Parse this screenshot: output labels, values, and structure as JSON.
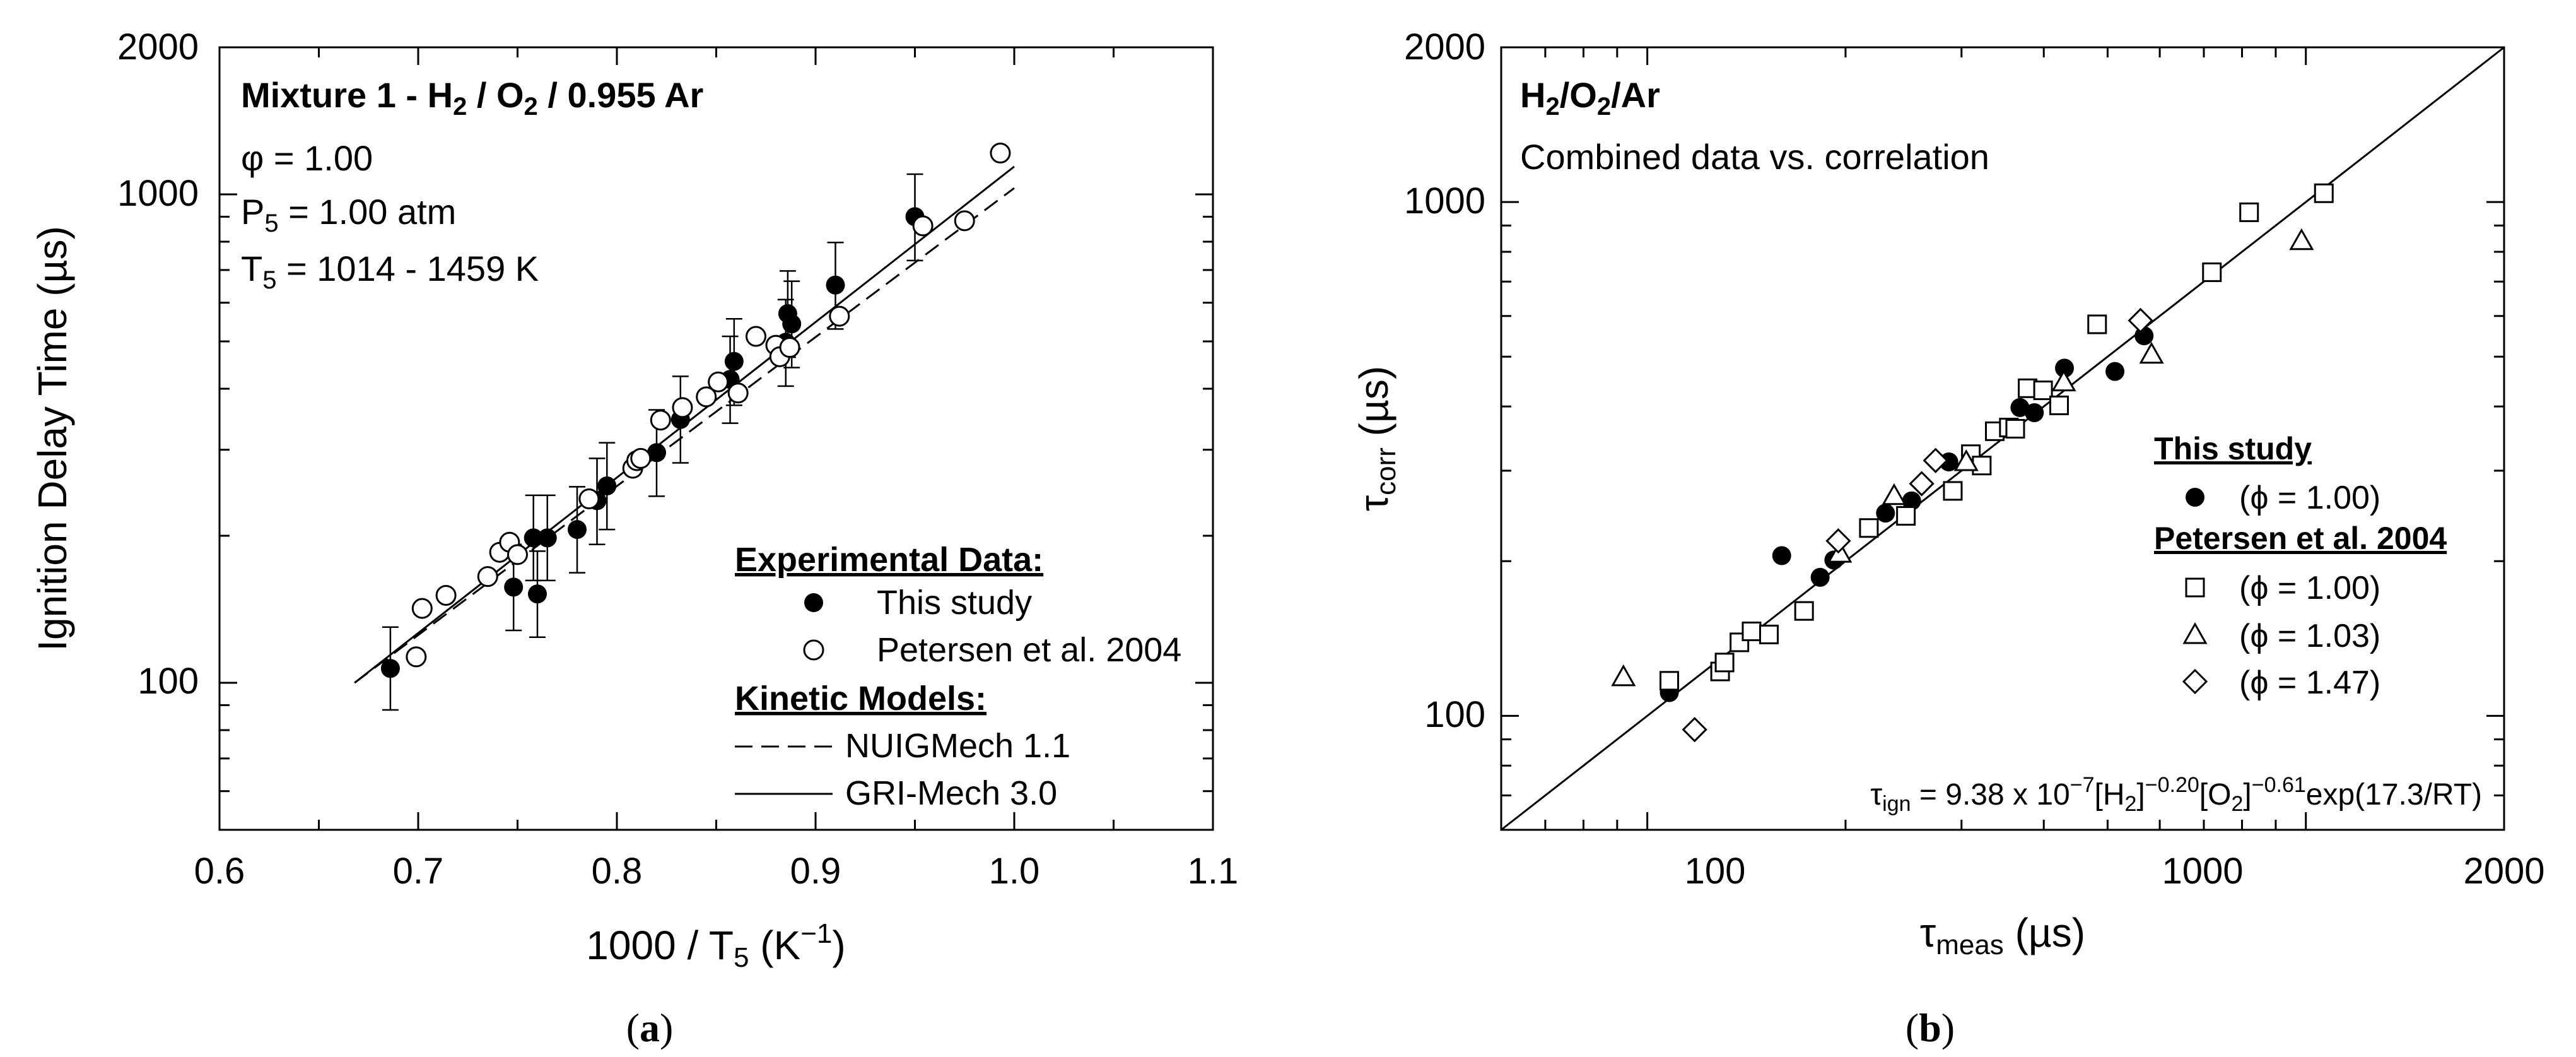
{
  "chart_data": [
    {
      "id": "a",
      "type": "scatter",
      "scale": "semilog-y",
      "xlabel": "1000 / T5 (K⁻¹)",
      "ylabel": "Ignition Delay Time (µs)",
      "xlim": [
        0.6,
        1.1
      ],
      "ylim": [
        50,
        2000
      ],
      "xticks": [
        0.6,
        0.7,
        0.8,
        0.9,
        1.0,
        1.1
      ],
      "xtick_labels": [
        "0.6",
        "0.7",
        "0.8",
        "0.9",
        "1.0",
        "1.1"
      ],
      "yticks": [
        100,
        1000,
        2000
      ],
      "ytick_labels": [
        "100",
        "1000",
        "2000"
      ],
      "panel_label": "(a)",
      "title_lines": {
        "mixture": "Mixture 1 - H₂ / O₂ / 0.955 Ar",
        "phi": "φ = 1.00",
        "pressure": "P₅ = 1.00 atm",
        "temperature": "T₅ = 1014 - 1459 K"
      },
      "legend": {
        "placement": "bottom-right",
        "exp_heading": "Experimental Data:",
        "model_heading": "Kinetic Models:",
        "this_study": "This study",
        "petersen": "Petersen et al. 2004",
        "nuig": "NUIGMech 1.1",
        "gri": "GRI-Mech 3.0"
      },
      "series": [
        {
          "name": "This study",
          "marker": "filled-circle",
          "points": [
            {
              "x": 0.686,
              "y": 107,
              "lo": 88,
              "hi": 130
            },
            {
              "x": 0.748,
              "y": 157,
              "lo": 128,
              "hi": 192
            },
            {
              "x": 0.758,
              "y": 198,
              "lo": 162,
              "hi": 242
            },
            {
              "x": 0.76,
              "y": 152,
              "lo": 124,
              "hi": 186
            },
            {
              "x": 0.765,
              "y": 198,
              "lo": 162,
              "hi": 242
            },
            {
              "x": 0.78,
              "y": 206,
              "lo": 168,
              "hi": 252
            },
            {
              "x": 0.79,
              "y": 236,
              "lo": 192,
              "hi": 288
            },
            {
              "x": 0.795,
              "y": 253,
              "lo": 206,
              "hi": 310
            },
            {
              "x": 0.82,
              "y": 296,
              "lo": 241,
              "hi": 362
            },
            {
              "x": 0.832,
              "y": 346,
              "lo": 282,
              "hi": 424
            },
            {
              "x": 0.857,
              "y": 418,
              "lo": 340,
              "hi": 512
            },
            {
              "x": 0.859,
              "y": 455,
              "lo": 370,
              "hi": 556
            },
            {
              "x": 0.885,
              "y": 498,
              "lo": 405,
              "hi": 609
            },
            {
              "x": 0.886,
              "y": 570,
              "lo": 464,
              "hi": 697
            },
            {
              "x": 0.888,
              "y": 543,
              "lo": 442,
              "hi": 664
            },
            {
              "x": 0.91,
              "y": 652,
              "lo": 530,
              "hi": 797
            },
            {
              "x": 0.95,
              "y": 900,
              "lo": 732,
              "hi": 1100
            }
          ]
        },
        {
          "name": "Petersen et al. 2004",
          "marker": "open-circle",
          "points": [
            {
              "x": 0.699,
              "y": 113
            },
            {
              "x": 0.702,
              "y": 142
            },
            {
              "x": 0.714,
              "y": 151
            },
            {
              "x": 0.735,
              "y": 165
            },
            {
              "x": 0.741,
              "y": 185
            },
            {
              "x": 0.746,
              "y": 194
            },
            {
              "x": 0.75,
              "y": 183
            },
            {
              "x": 0.786,
              "y": 238
            },
            {
              "x": 0.808,
              "y": 275
            },
            {
              "x": 0.81,
              "y": 285
            },
            {
              "x": 0.812,
              "y": 288
            },
            {
              "x": 0.822,
              "y": 345
            },
            {
              "x": 0.833,
              "y": 366
            },
            {
              "x": 0.845,
              "y": 385
            },
            {
              "x": 0.851,
              "y": 413
            },
            {
              "x": 0.861,
              "y": 392
            },
            {
              "x": 0.87,
              "y": 512
            },
            {
              "x": 0.88,
              "y": 491
            },
            {
              "x": 0.882,
              "y": 465
            },
            {
              "x": 0.887,
              "y": 486
            },
            {
              "x": 0.912,
              "y": 563
            },
            {
              "x": 0.954,
              "y": 862
            },
            {
              "x": 0.975,
              "y": 883
            },
            {
              "x": 0.993,
              "y": 1215
            }
          ]
        },
        {
          "name": "NUIGMech 1.1",
          "line": "dashed",
          "x": [
            0.668,
            1.0
          ],
          "y": [
            100,
            1030
          ]
        },
        {
          "name": "GRI-Mech 3.0",
          "line": "solid",
          "x": [
            0.668,
            1.0
          ],
          "y": [
            100,
            1140
          ]
        }
      ]
    },
    {
      "id": "b",
      "type": "scatter",
      "scale": "log-log",
      "xlabel": "τmeas (µs)",
      "ylabel": "τcorr (µs)",
      "xlim": [
        60,
        2000
      ],
      "ylim": [
        60,
        2000
      ],
      "xticks": [
        100,
        1000,
        2000
      ],
      "xtick_labels": [
        "100",
        "1000",
        "2000"
      ],
      "yticks": [
        100,
        1000,
        2000
      ],
      "ytick_labels": [
        "100",
        "1000",
        "2000"
      ],
      "panel_label": "(b)",
      "title_lines": {
        "mixture": "H₂/O₂/Ar",
        "subtitle": "Combined data vs. correlation"
      },
      "correlation": "τign = 9.38 x 10⁻⁷[H₂]⁻⁰·²⁰[O₂]⁻⁰·⁶¹exp(17.3/RT)",
      "legend": {
        "placement": "center-right",
        "this_heading": "This study",
        "petersen_heading": "Petersen et al. 2004",
        "phi_100": "(ϕ = 1.00)",
        "phi_100b": "(ϕ = 1.00)",
        "phi_103": "(ϕ = 1.03)",
        "phi_147": "(ϕ = 1.47)"
      },
      "series": [
        {
          "name": "This study (ϕ = 1.00)",
          "marker": "filled-circle",
          "points": [
            {
              "x": 108,
              "y": 111
            },
            {
              "x": 160,
              "y": 205
            },
            {
              "x": 183,
              "y": 186
            },
            {
              "x": 192,
              "y": 201
            },
            {
              "x": 230,
              "y": 248
            },
            {
              "x": 252,
              "y": 262
            },
            {
              "x": 287,
              "y": 312
            },
            {
              "x": 368,
              "y": 398
            },
            {
              "x": 387,
              "y": 389
            },
            {
              "x": 430,
              "y": 475
            },
            {
              "x": 513,
              "y": 468
            },
            {
              "x": 568,
              "y": 549
            }
          ]
        },
        {
          "name": "Petersen (ϕ = 1.00)",
          "marker": "open-square",
          "points": [
            {
              "x": 108,
              "y": 117
            },
            {
              "x": 129,
              "y": 122
            },
            {
              "x": 131,
              "y": 127
            },
            {
              "x": 138,
              "y": 139
            },
            {
              "x": 144,
              "y": 146
            },
            {
              "x": 153,
              "y": 144
            },
            {
              "x": 173,
              "y": 160
            },
            {
              "x": 217,
              "y": 232
            },
            {
              "x": 247,
              "y": 245
            },
            {
              "x": 291,
              "y": 274
            },
            {
              "x": 310,
              "y": 323
            },
            {
              "x": 322,
              "y": 307
            },
            {
              "x": 337,
              "y": 358
            },
            {
              "x": 354,
              "y": 364
            },
            {
              "x": 362,
              "y": 362
            },
            {
              "x": 378,
              "y": 434
            },
            {
              "x": 399,
              "y": 430
            },
            {
              "x": 422,
              "y": 402
            },
            {
              "x": 482,
              "y": 578
            },
            {
              "x": 720,
              "y": 730
            },
            {
              "x": 820,
              "y": 955
            },
            {
              "x": 1065,
              "y": 1040
            }
          ]
        },
        {
          "name": "Petersen (ϕ = 1.03)",
          "marker": "open-triangle",
          "points": [
            {
              "x": 92,
              "y": 119
            },
            {
              "x": 196,
              "y": 207
            },
            {
              "x": 237,
              "y": 268
            },
            {
              "x": 305,
              "y": 312
            },
            {
              "x": 429,
              "y": 446
            },
            {
              "x": 583,
              "y": 505
            },
            {
              "x": 985,
              "y": 840
            }
          ]
        },
        {
          "name": "Petersen (ϕ = 1.47)",
          "marker": "open-diamond",
          "points": [
            {
              "x": 118,
              "y": 94
            },
            {
              "x": 195,
              "y": 219
            },
            {
              "x": 261,
              "y": 283
            },
            {
              "x": 274,
              "y": 314
            },
            {
              "x": 561,
              "y": 588
            }
          ]
        },
        {
          "name": "1:1 line",
          "line": "solid",
          "x": [
            60,
            2000
          ],
          "y": [
            60,
            2000
          ]
        }
      ]
    }
  ]
}
